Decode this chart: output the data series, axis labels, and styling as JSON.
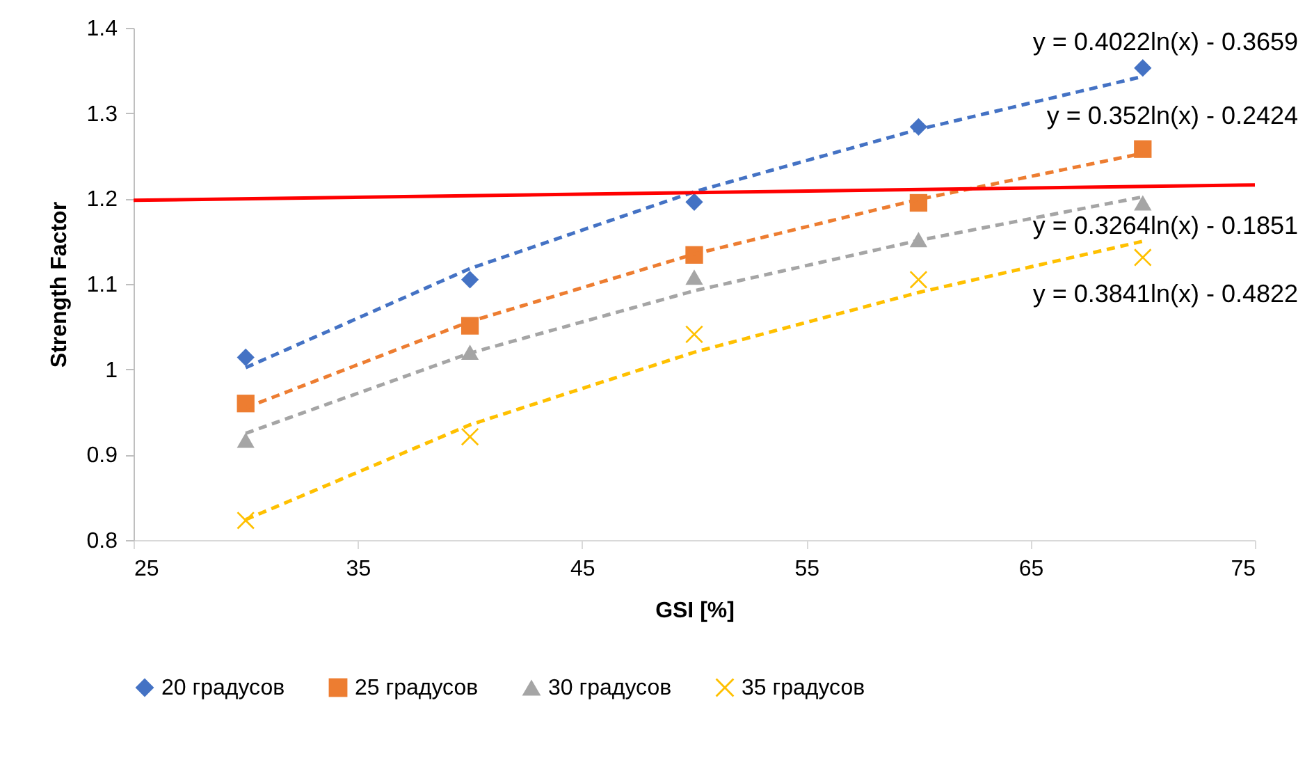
{
  "chart_data": {
    "type": "scatter",
    "xlabel": "GSI [%]",
    "ylabel": "Strength Factor",
    "xlim": [
      25,
      75
    ],
    "xticks": [
      25,
      35,
      45,
      55,
      65,
      75
    ],
    "ylim": [
      0.8,
      1.4
    ],
    "yticks": [
      0.8,
      0.9,
      1,
      1.1,
      1.2,
      1.3,
      1.4
    ],
    "legend": "bottom",
    "series": [
      {
        "name": "20 градусов",
        "type": "scatter",
        "marker": "diamond",
        "color": "#4472c4",
        "x": [
          30,
          40,
          50,
          60,
          70
        ],
        "values": [
          1.014,
          1.105,
          1.196,
          1.284,
          1.353
        ]
      },
      {
        "name": "25 градусов",
        "type": "scatter",
        "marker": "square",
        "color": "#ed7d31",
        "x": [
          30,
          40,
          50,
          60,
          70
        ],
        "values": [
          0.96,
          1.051,
          1.134,
          1.195,
          1.258
        ]
      },
      {
        "name": "30 градусов",
        "type": "scatter",
        "marker": "triangle",
        "color": "#a5a5a5",
        "x": [
          30,
          40,
          50,
          60,
          70
        ],
        "values": [
          0.917,
          1.02,
          1.108,
          1.152,
          1.195
        ]
      },
      {
        "name": "35 градусов",
        "type": "scatter",
        "marker": "cross",
        "color": "#ffc000",
        "x": [
          30,
          40,
          50,
          60,
          70
        ],
        "values": [
          0.823,
          0.921,
          1.041,
          1.105,
          1.131
        ]
      },
      {
        "type": "line",
        "line_style": "dashed",
        "color": "#4472c4",
        "x": [
          30,
          40,
          50,
          60,
          70
        ],
        "values": [
          1.002,
          1.118,
          1.208,
          1.281,
          1.343
        ]
      },
      {
        "type": "line",
        "line_style": "dashed",
        "color": "#ed7d31",
        "x": [
          30,
          40,
          50,
          60,
          70
        ],
        "values": [
          0.955,
          1.056,
          1.135,
          1.199,
          1.253
        ]
      },
      {
        "type": "line",
        "line_style": "dashed",
        "color": "#a5a5a5",
        "x": [
          30,
          40,
          50,
          60,
          70
        ],
        "values": [
          0.925,
          1.019,
          1.092,
          1.151,
          1.202
        ]
      },
      {
        "type": "line",
        "line_style": "dashed",
        "color": "#ffc000",
        "x": [
          30,
          40,
          50,
          60,
          70
        ],
        "values": [
          0.824,
          0.935,
          1.02,
          1.09,
          1.15
        ]
      },
      {
        "type": "line",
        "line_style": "solid",
        "color": "#ff0000",
        "x": [
          25,
          75
        ],
        "values": [
          1.198,
          1.216
        ]
      }
    ],
    "annotations": [
      "y = 0.4022ln(x) - 0.3659",
      "y = 0.352ln(x) - 0.2424",
      "y = 0.3264ln(x) - 0.1851",
      "y = 0.3841ln(x) - 0.4822"
    ]
  }
}
